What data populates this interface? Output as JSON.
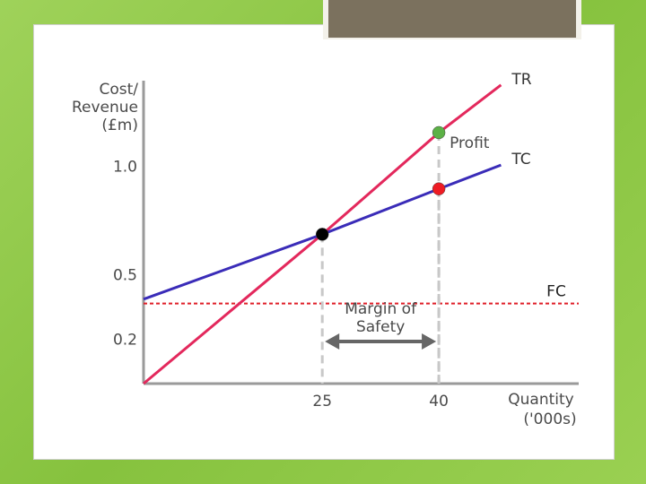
{
  "chart_data": {
    "type": "line",
    "y_label": [
      "Cost/",
      "Revenue",
      "(£m)"
    ],
    "x_label": [
      "Quantity",
      "('000s)"
    ],
    "x": [
      2,
      25,
      40,
      48
    ],
    "series": [
      {
        "name": "TR",
        "color": "#e3285c",
        "values": [
          0,
          0.69,
          1.16,
          1.38
        ]
      },
      {
        "name": "TC",
        "color": "#3a2cb8",
        "values": [
          0.39,
          0.69,
          0.9,
          1.01
        ]
      }
    ],
    "reference_lines": [
      {
        "name": "FC",
        "value": 0.37,
        "color": "#e0202a"
      }
    ],
    "markers": [
      {
        "x": 25,
        "y": 0.69,
        "color": "#000000"
      },
      {
        "x": 40,
        "y": 1.16,
        "color": "#5cb146"
      },
      {
        "x": 40,
        "y": 0.9,
        "color": "#ee1c24"
      }
    ],
    "annotations": {
      "profit": "Profit",
      "margin": [
        "Margin of",
        "Safety"
      ]
    },
    "xlim": [
      2,
      58
    ],
    "ylim": [
      0,
      1.4
    ],
    "xticks": [
      25,
      40
    ],
    "yticks": [
      0.2,
      0.5,
      {
        "value": 1,
        "label": "1.0"
      }
    ]
  }
}
